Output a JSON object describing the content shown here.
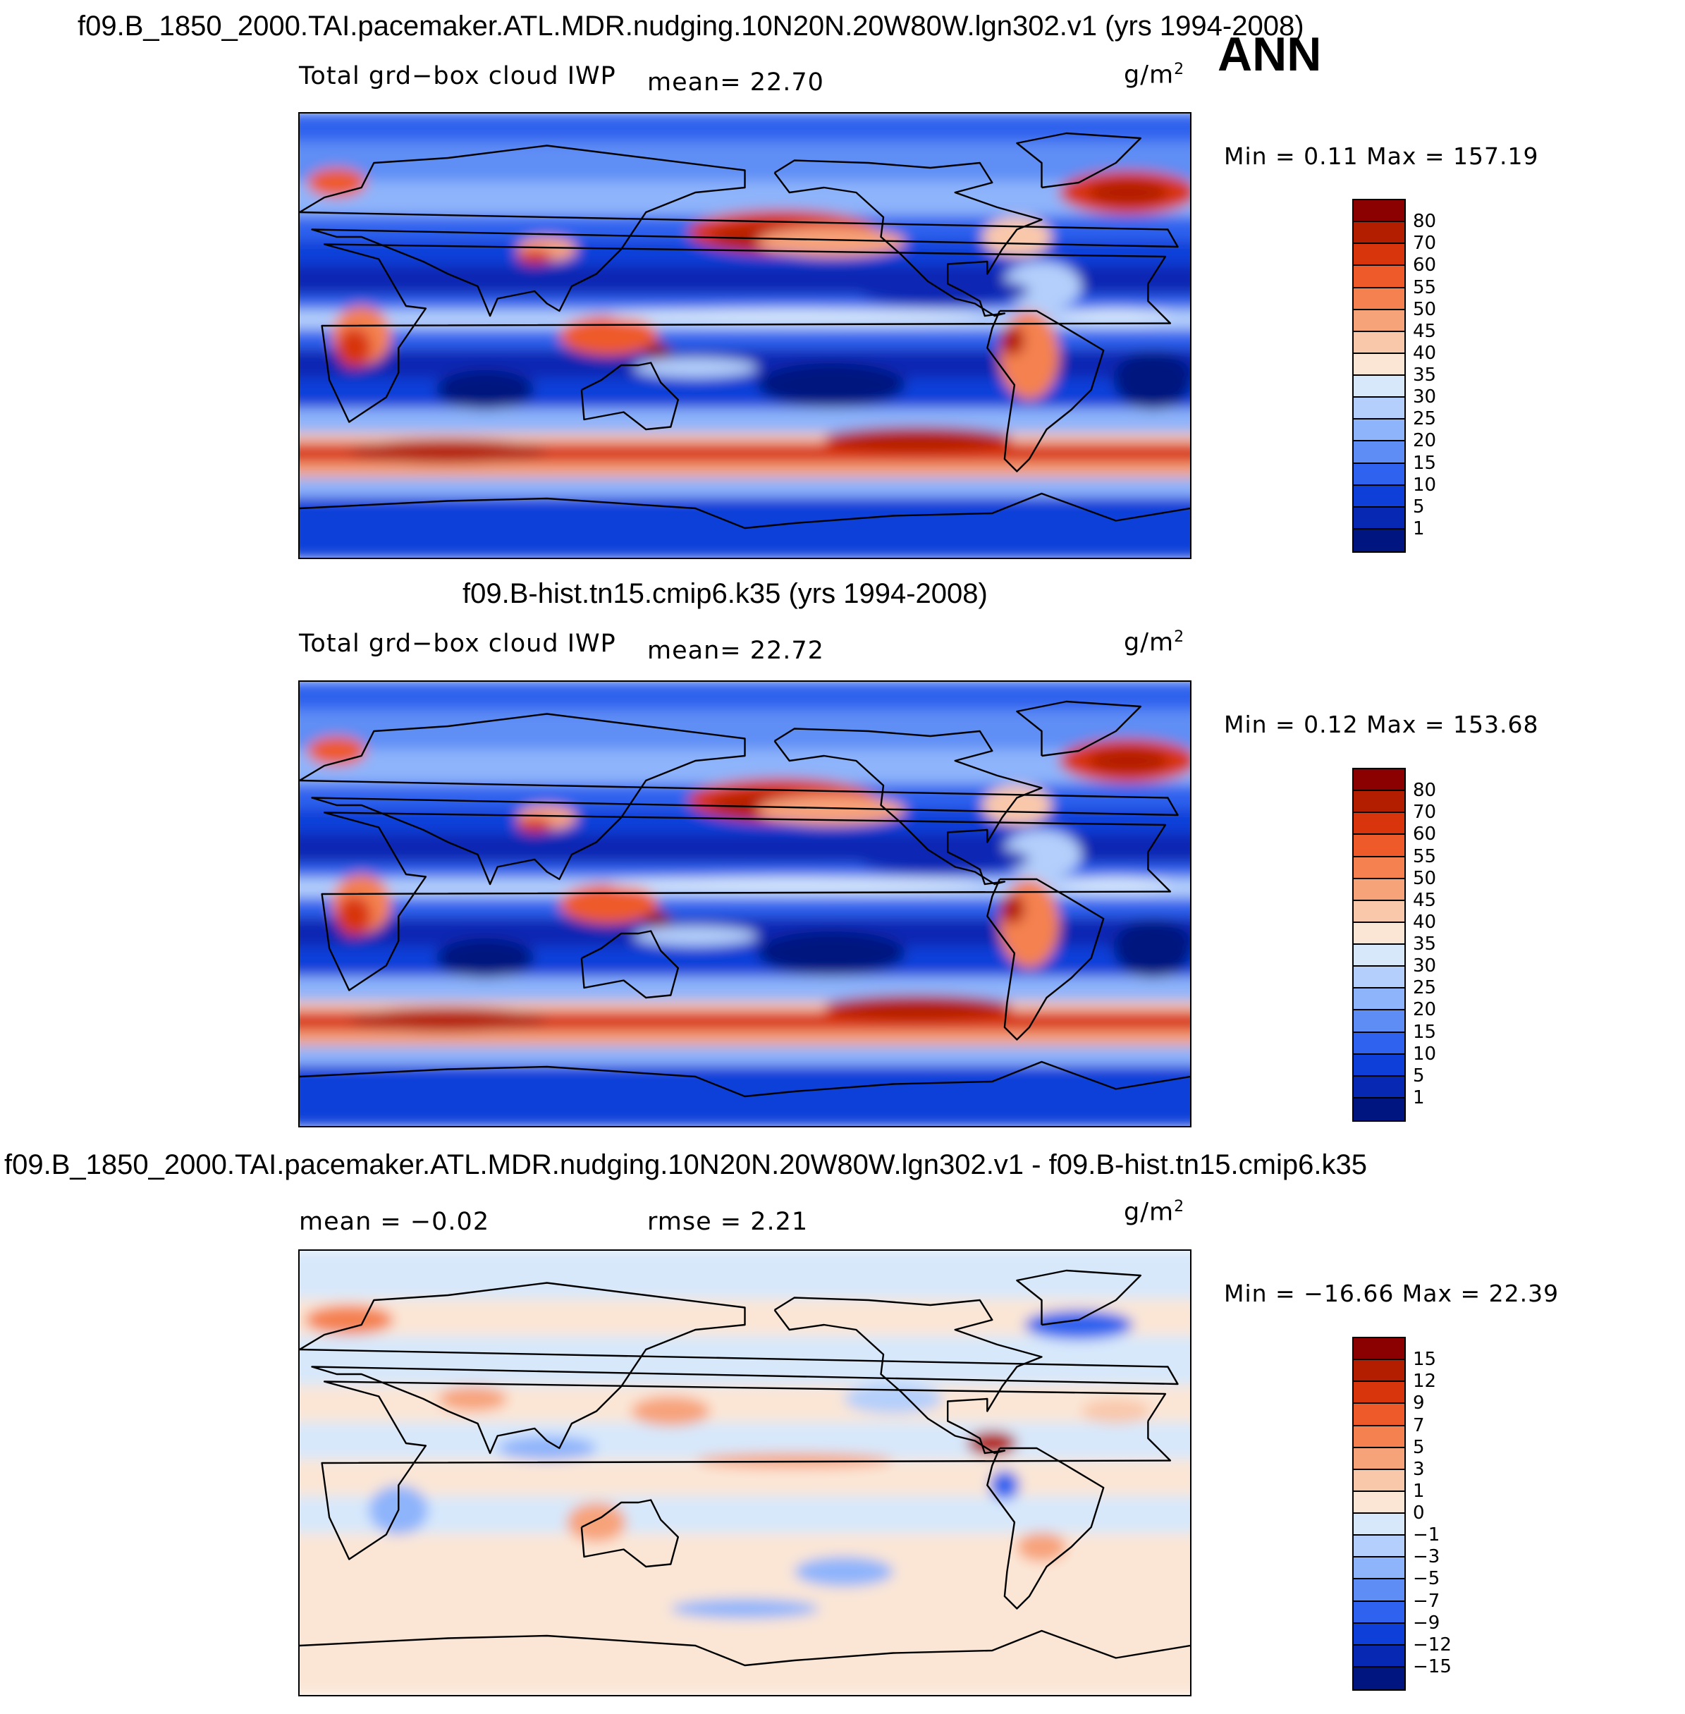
{
  "season": "ANN",
  "units_prefix": "g/m",
  "units_exp": "2",
  "panels": [
    {
      "title": "f09.B_1850_2000.TAI.pacemaker.ATL.MDR.nudging.10N20N.20W80W.lgn302.v1 (yrs 1994-2008)",
      "variable": "Total grd−box cloud IWP",
      "mean_text": "mean=   22.70",
      "minmax_text": "Min =     0.11  Max  =  157.19",
      "levels": [
        "80",
        "70",
        "60",
        "55",
        "50",
        "45",
        "40",
        "35",
        "30",
        "25",
        "20",
        "15",
        "10",
        "5",
        "1"
      ],
      "colors": [
        "#8b0000",
        "#b31d00",
        "#d8350c",
        "#ee5a2a",
        "#f4814f",
        "#f7a37a",
        "#f9c8ab",
        "#fbe6d6",
        "#d7e8fb",
        "#b4cffb",
        "#8eb4fb",
        "#5e8ef5",
        "#2f62ee",
        "#0f3fd9",
        "#0728b3",
        "#00157f"
      ]
    },
    {
      "title": "f09.B-hist.tn15.cmip6.k35 (yrs 1994-2008)",
      "variable": "Total grd−box cloud IWP",
      "mean_text": "mean=   22.72",
      "minmax_text": "Min =     0.12  Max  =  153.68",
      "levels": [
        "80",
        "70",
        "60",
        "55",
        "50",
        "45",
        "40",
        "35",
        "30",
        "25",
        "20",
        "15",
        "10",
        "5",
        "1"
      ],
      "colors": [
        "#8b0000",
        "#b31d00",
        "#d8350c",
        "#ee5a2a",
        "#f4814f",
        "#f7a37a",
        "#f9c8ab",
        "#fbe6d6",
        "#d7e8fb",
        "#b4cffb",
        "#8eb4fb",
        "#5e8ef5",
        "#2f62ee",
        "#0f3fd9",
        "#0728b3",
        "#00157f"
      ]
    },
    {
      "title": "f09.B_1850_2000.TAI.pacemaker.ATL.MDR.nudging.10N20N.20W80W.lgn302.v1 - f09.B-hist.tn15.cmip6.k35",
      "mean_text": "mean =   −0.02",
      "rmse_text": "rmse =     2.21",
      "minmax_text": "Min = −16.66  Max =    22.39",
      "levels": [
        "15",
        "12",
        "9",
        "7",
        "5",
        "3",
        "1",
        "0",
        "−1",
        "−3",
        "−5",
        "−7",
        "−9",
        "−12",
        "−15"
      ],
      "colors": [
        "#8b0000",
        "#b31d00",
        "#d8350c",
        "#ee5a2a",
        "#f4814f",
        "#f7a37a",
        "#f9c8ab",
        "#fbe6d6",
        "#d7e8fb",
        "#b4cffb",
        "#8eb4fb",
        "#5e8ef5",
        "#2f62ee",
        "#0f3fd9",
        "#0728b3",
        "#00157f"
      ]
    }
  ],
  "chart_data": [
    {
      "type": "heatmap",
      "title": "f09.B_1850_2000.TAI.pacemaker.ATL.MDR.nudging.10N20N.20W80W.lgn302.v1 (yrs 1994-2008)",
      "variable": "Total grd-box cloud IWP",
      "units": "g/m2",
      "mean": 22.7,
      "min": 0.11,
      "max": 157.19,
      "contour_levels": [
        1,
        5,
        10,
        15,
        20,
        25,
        30,
        35,
        40,
        45,
        50,
        55,
        60,
        70,
        80
      ],
      "xlim": [
        0,
        360
      ],
      "ylim": [
        -90,
        90
      ]
    },
    {
      "type": "heatmap",
      "title": "f09.B-hist.tn15.cmip6.k35 (yrs 1994-2008)",
      "variable": "Total grd-box cloud IWP",
      "units": "g/m2",
      "mean": 22.72,
      "min": 0.12,
      "max": 153.68,
      "contour_levels": [
        1,
        5,
        10,
        15,
        20,
        25,
        30,
        35,
        40,
        45,
        50,
        55,
        60,
        70,
        80
      ],
      "xlim": [
        0,
        360
      ],
      "ylim": [
        -90,
        90
      ]
    },
    {
      "type": "heatmap",
      "title": "f09.B_1850_2000.TAI.pacemaker.ATL.MDR.nudging.10N20N.20W80W.lgn302.v1 - f09.B-hist.tn15.cmip6.k35",
      "units": "g/m2",
      "mean": -0.02,
      "rmse": 2.21,
      "min": -16.66,
      "max": 22.39,
      "contour_levels": [
        -15,
        -12,
        -9,
        -7,
        -5,
        -3,
        -1,
        0,
        1,
        3,
        5,
        7,
        9,
        12,
        15
      ],
      "xlim": [
        0,
        360
      ],
      "ylim": [
        -90,
        90
      ]
    }
  ]
}
